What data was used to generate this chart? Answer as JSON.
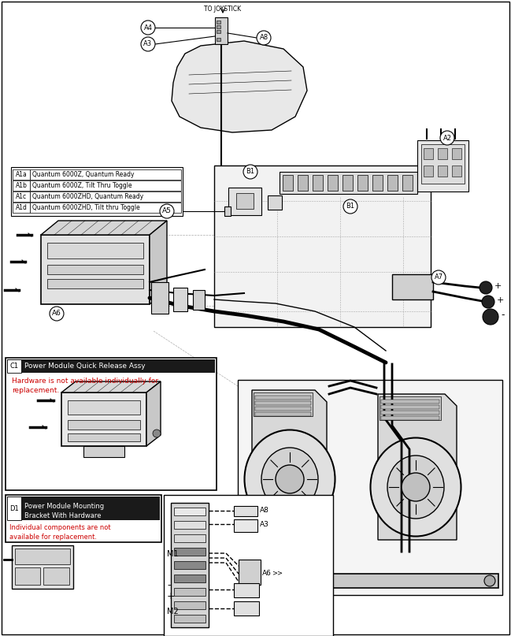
{
  "bg_color": "#ffffff",
  "fig_width": 6.49,
  "fig_height": 8.07,
  "dpi": 100,
  "to_joystick": "TO JOYSTICK",
  "A1a_text": "Quantum 6000Z, Quantum Ready",
  "A1b_text": "Quantum 6000Z, Tilt Thru Toggle",
  "A1c_text": "Quantum 6000ZHD, Quantum Ready",
  "A1d_text": "Quantum 6000ZHD, Tilt thru Toggle",
  "C1_title": "Power Module Quick Release Assy",
  "C1_note": "Hardware is not available individually for\nreplacement.",
  "D1_title": "Power Module Mounting\nBracket With Hardware",
  "D1_note": "Individual components are not\navailable for replacement.",
  "colors": {
    "black": "#000000",
    "white": "#ffffff",
    "red": "#cc0000",
    "gray_light": "#e8e8e8",
    "gray_mid": "#c0c0c0",
    "gray_dark": "#888888",
    "label_bg": "#1a1a1a",
    "dashed_line": "#aaaaaa"
  }
}
